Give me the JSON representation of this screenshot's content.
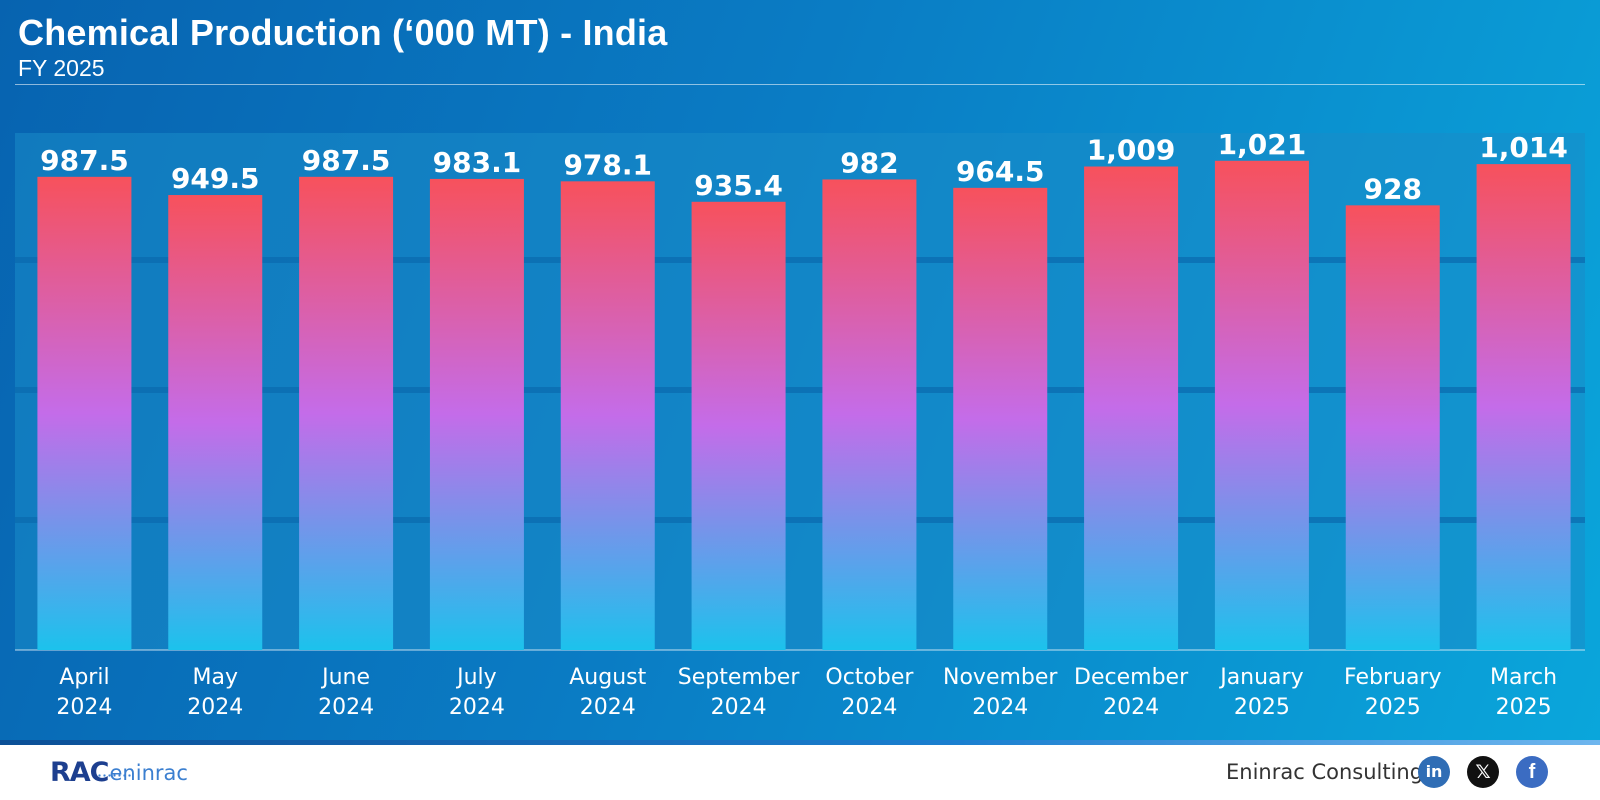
{
  "header": {
    "title": "Chemical Production (‘000 MT) - India",
    "subtitle": "FY 2025"
  },
  "colors": {
    "bar_top": "#f7515c",
    "bar_mid": "#c46ce9",
    "bar_bottom": "#1cc2ec",
    "label": "#ffffff",
    "plot_band": "#1a8dc9",
    "grid": "#0a69ae"
  },
  "chart_data": {
    "type": "bar",
    "title": "Chemical Production (‘000 MT) - India",
    "subtitle": "FY 2025",
    "categories": [
      [
        "April",
        "2024"
      ],
      [
        "May",
        "2024"
      ],
      [
        "June",
        "2024"
      ],
      [
        "July",
        "2024"
      ],
      [
        "August",
        "2024"
      ],
      [
        "September",
        "2024"
      ],
      [
        "October",
        "2024"
      ],
      [
        "November",
        "2024"
      ],
      [
        "December",
        "2024"
      ],
      [
        "January",
        "2025"
      ],
      [
        "February",
        "2025"
      ],
      [
        "March",
        "2025"
      ]
    ],
    "values": [
      987.5,
      949.5,
      987.5,
      983.1,
      978.1,
      935.4,
      982,
      964.5,
      1009,
      1021,
      928,
      1014
    ],
    "data_labels": [
      "987.5",
      "949.5",
      "987.5",
      "983.1",
      "978.1",
      "935.4",
      "982",
      "964.5",
      "1,009",
      "1,021",
      "928",
      "1,014"
    ],
    "ylim": [
      0,
      1200
    ],
    "grid": true,
    "legend": "none"
  },
  "footer": {
    "logo_mark": "RAC",
    "logo_word": "eninrac",
    "company": "Eninrac Consulting",
    "social": [
      "linkedin-icon",
      "x-icon",
      "facebook-icon"
    ]
  }
}
